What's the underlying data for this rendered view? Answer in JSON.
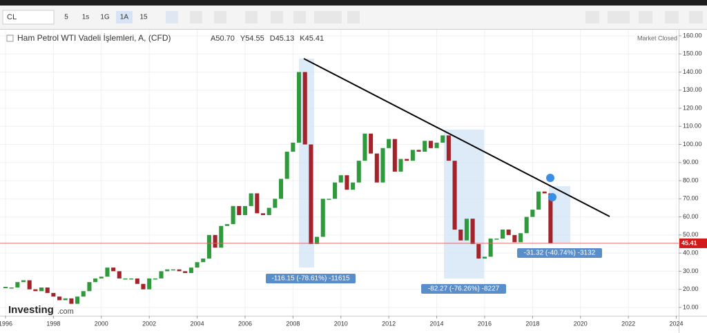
{
  "toolbar": {
    "symbol": "CL",
    "intervals": [
      "5",
      "1s",
      "1G",
      "1A",
      "15"
    ],
    "status": "Market Closed",
    "watermark": "Investing",
    "watermark_suffix": ".com"
  },
  "chart_data": {
    "type": "candlestick",
    "title": "Ham Petrol WTI Vadeli İşlemleri, A, (CFD)",
    "ohlc": [
      "A50.70",
      "Y54.55",
      "D45.13",
      "K45.41"
    ],
    "x": [
      1996,
      1996.25,
      1996.5,
      1996.75,
      1997,
      1997.25,
      1997.5,
      1997.75,
      1998,
      1998.25,
      1998.5,
      1998.75,
      1999,
      1999.25,
      1999.5,
      1999.75,
      2000,
      2000.25,
      2000.5,
      2000.75,
      2001,
      2001.25,
      2001.5,
      2001.75,
      2002,
      2002.25,
      2002.5,
      2002.75,
      2003,
      2003.25,
      2003.5,
      2003.75,
      2004,
      2004.25,
      2004.5,
      2004.75,
      2005,
      2005.25,
      2005.5,
      2005.75,
      2006,
      2006.25,
      2006.5,
      2006.75,
      2007,
      2007.25,
      2007.5,
      2007.75,
      2008,
      2008.25,
      2008.5,
      2008.75,
      2009,
      2009.25,
      2009.5,
      2009.75,
      2010,
      2010.25,
      2010.5,
      2010.75,
      2011,
      2011.25,
      2011.5,
      2011.75,
      2012,
      2012.25,
      2012.5,
      2012.75,
      2013,
      2013.25,
      2013.5,
      2013.75,
      2014,
      2014.25,
      2014.5,
      2014.75,
      2015,
      2015.25,
      2015.5,
      2015.75,
      2016,
      2016.25,
      2016.5,
      2016.75,
      2017,
      2017.25,
      2017.5,
      2017.75,
      2018,
      2018.25,
      2018.5,
      2018.75
    ],
    "close": [
      21,
      21,
      24,
      25,
      20,
      19,
      21,
      18,
      16,
      14,
      15,
      12,
      16,
      19,
      24,
      26,
      27,
      32,
      30,
      26,
      26,
      26,
      23,
      20,
      26,
      26,
      30,
      31,
      31,
      30,
      29,
      32,
      35,
      37,
      50,
      43,
      55,
      56,
      66,
      61,
      66,
      73,
      62,
      61,
      65,
      70,
      81,
      96,
      101,
      140,
      100,
      45,
      49,
      70,
      70,
      79,
      83,
      75,
      79,
      91,
      106,
      95,
      79,
      98,
      103,
      85,
      92,
      91,
      97,
      96,
      102,
      98,
      101,
      105,
      91,
      53,
      47,
      59,
      45,
      37,
      38,
      48,
      48,
      53,
      50,
      46,
      51,
      60,
      64,
      74,
      73,
      45.41
    ],
    "up_color": "#2f9a3c",
    "down_color": "#a3232a",
    "last_price": 45.41,
    "annotations": [
      "-116.15 (-78.61%) -11615",
      "-82.27 (-76.26%) -8227",
      "-31.32 (-40.74%) -3132"
    ],
    "xlim": [
      1995.77,
      2024.1
    ],
    "xticks": [
      1996,
      1998,
      2000,
      2002,
      2004,
      2006,
      2008,
      2010,
      2012,
      2014,
      2016,
      2018,
      2020,
      2022,
      2024
    ],
    "ylim": [
      5.4,
      163.4
    ],
    "yticks": [
      {
        "value": 10,
        "label": "10.00"
      },
      {
        "value": 20,
        "label": "20.00"
      },
      {
        "value": 30,
        "label": "30.00"
      },
      {
        "value": 40,
        "label": "40.00"
      },
      {
        "value": 50,
        "label": "50.00"
      },
      {
        "value": 60,
        "label": "60.00"
      },
      {
        "value": 70,
        "label": "70.00"
      },
      {
        "value": 80,
        "label": "80.00"
      },
      {
        "value": 90,
        "label": "90.00"
      },
      {
        "value": 100,
        "label": "100.00"
      },
      {
        "value": 110,
        "label": "110.00"
      },
      {
        "value": 120,
        "label": "120.00"
      },
      {
        "value": 130,
        "label": "130.00"
      },
      {
        "value": 140,
        "label": "140.00"
      },
      {
        "value": 150,
        "label": "150.00"
      },
      {
        "value": 160,
        "label": "160.00"
      }
    ],
    "grid": true
  }
}
